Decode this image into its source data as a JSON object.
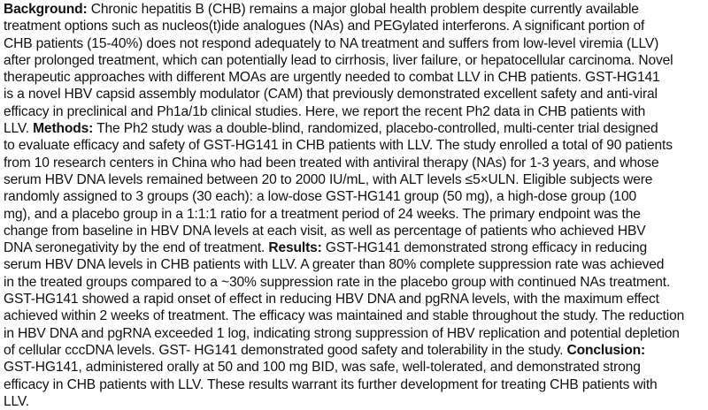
{
  "abstract": {
    "lines": [
      [
        {
          "b": true,
          "t": "Background:"
        },
        {
          "b": false,
          "t": " Chronic hepatitis B (CHB) remains a major global health problem despite currently available"
        }
      ],
      [
        {
          "b": false,
          "t": "treatment options such as nucleos(t)ide analogues (NAs) and PEGylated interferons. A significant portion of"
        }
      ],
      [
        {
          "b": false,
          "t": "CHB patients (15-40%) does not respond adequately to NA treatment and suffers from low-level viremia (LLV)"
        }
      ],
      [
        {
          "b": false,
          "t": "after prolonged treatment, which can potentially lead to cirrhosis, liver failure, or hepatocellular carcinoma. Novel"
        }
      ],
      [
        {
          "b": false,
          "t": "therapeutic approaches with different MOAs are urgently needed to combat LLV in CHB patients. GST-HG141"
        }
      ],
      [
        {
          "b": false,
          "t": "is a novel HBV capsid assembly modulator (CAM) that previously demonstrated excellent safety and anti-viral"
        }
      ],
      [
        {
          "b": false,
          "t": "efficacy in preclinical and Ph1a/1b clinical studies. Here, we report the recent Ph2 data in CHB patients with"
        }
      ],
      [
        {
          "b": false,
          "t": "LLV. "
        },
        {
          "b": true,
          "t": "Methods:"
        },
        {
          "b": false,
          "t": " The Ph2 study was a double-blind, randomized, placebo-controlled, multi-center trial designed"
        }
      ],
      [
        {
          "b": false,
          "t": "to evaluate efficacy and safety of GST-HG141 in CHB patients with LLV. The study enrolled a total of 90 patients"
        }
      ],
      [
        {
          "b": false,
          "t": "from 10 research centers in China who had been treated with antiviral therapy (NAs) for 1-3 years, and whose"
        }
      ],
      [
        {
          "b": false,
          "t": "serum HBV DNA levels remained between 20 to 2000 IU/mL, with ALT levels ≤5×ULN. Eligible subjects were"
        }
      ],
      [
        {
          "b": false,
          "t": "randomly assigned to 3 groups (30 each): a low-dose GST-HG141 group (50 mg), a high-dose group (100"
        }
      ],
      [
        {
          "b": false,
          "t": "mg), and a placebo group in a 1:1:1 ratio for a treatment period of 24 weeks. The primary endpoint was the"
        }
      ],
      [
        {
          "b": false,
          "t": "change from baseline in HBV DNA levels at each visit, as well as percentage of patients who achieved HBV"
        }
      ],
      [
        {
          "b": false,
          "t": "DNA seronegativity by the end of treatment. "
        },
        {
          "b": true,
          "t": "Results:"
        },
        {
          "b": false,
          "t": " GST-HG141 demonstrated strong efficacy in reducing"
        }
      ],
      [
        {
          "b": false,
          "t": "serum HBV DNA levels in CHB patients with LLV. A greater than 80% complete suppression rate was achieved"
        }
      ],
      [
        {
          "b": false,
          "t": "in the treated groups compared to a ~30% suppression rate in the placebo group with continued NAs treatment."
        }
      ],
      [
        {
          "b": false,
          "t": "GST-HG141 showed a rapid onset of effect in reducing HBV DNA and pgRNA levels, with the maximum effect"
        }
      ],
      [
        {
          "b": false,
          "t": "achieved within 2 weeks of treatment. The efficacy was maintained and stable throughout the study. The reduction"
        }
      ],
      [
        {
          "b": false,
          "t": "in HBV DNA and pgRNA exceeded 1 log, indicating strong suppression of HBV replication and potential depletion"
        }
      ],
      [
        {
          "b": false,
          "t": "of cellular cccDNA levels. GST- HG141 demonstrated good safety and tolerability in the study. "
        },
        {
          "b": true,
          "t": "Conclusion:"
        }
      ],
      [
        {
          "b": false,
          "t": "GST-HG141, administered orally at 50 and 100 mg BID, was safe, well-tolerated, and demonstrated strong"
        }
      ],
      [
        {
          "b": false,
          "t": "efficacy in CHB patients with LLV. These results warrant its further development for treating CHB patients with"
        }
      ],
      [
        {
          "b": false,
          "t": "LLV."
        }
      ]
    ]
  }
}
